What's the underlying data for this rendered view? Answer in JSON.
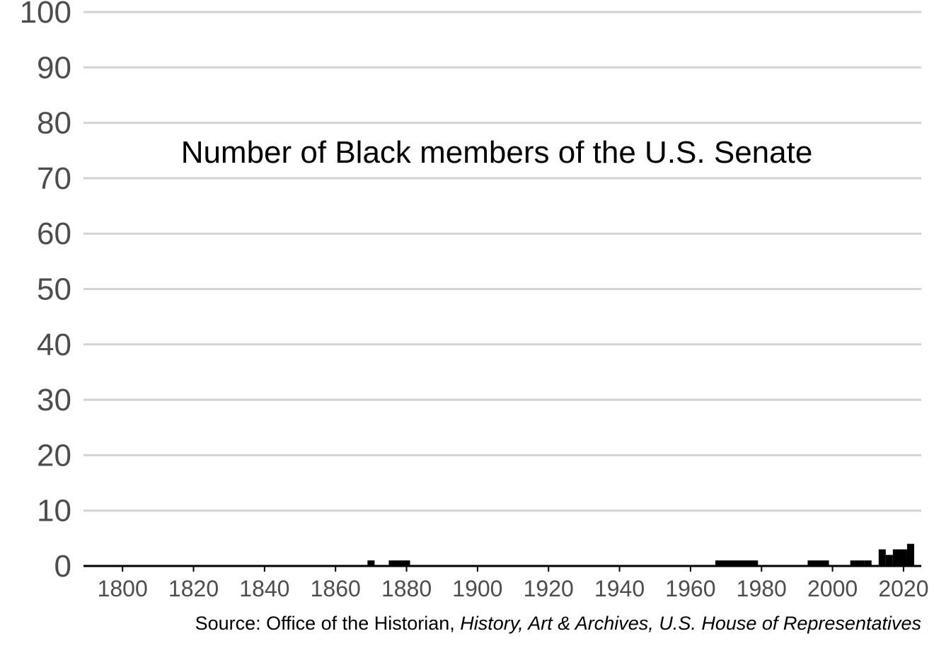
{
  "chart_data": {
    "type": "bar",
    "title": "Number of Black members of the U.S. Senate",
    "xlabel": "",
    "ylabel": "",
    "xlim": [
      1789,
      2025
    ],
    "ylim": [
      0,
      100
    ],
    "x_ticks": [
      1800,
      1820,
      1840,
      1860,
      1880,
      1900,
      1920,
      1940,
      1960,
      1980,
      2000,
      2020
    ],
    "y_ticks": [
      0,
      10,
      20,
      30,
      40,
      50,
      60,
      70,
      80,
      90,
      100
    ],
    "grid": "horizontal",
    "bar_color": "#000000",
    "grid_color": "#d3d3d3",
    "tick_label_color": "#4d4d4d",
    "bars": [
      {
        "start": 1869,
        "end": 1871,
        "value": 1
      },
      {
        "start": 1875,
        "end": 1881,
        "value": 1
      },
      {
        "start": 1967,
        "end": 1979,
        "value": 1
      },
      {
        "start": 1993,
        "end": 1999,
        "value": 1
      },
      {
        "start": 2005,
        "end": 2009,
        "value": 1
      },
      {
        "start": 2009,
        "end": 2011,
        "value": 1
      },
      {
        "start": 2013,
        "end": 2015,
        "value": 3
      },
      {
        "start": 2015,
        "end": 2017,
        "value": 2
      },
      {
        "start": 2017,
        "end": 2021,
        "value": 3
      },
      {
        "start": 2021,
        "end": 2023,
        "value": 4
      }
    ]
  },
  "source": {
    "prefix": "Source: Office of the Historian, ",
    "italic": "History, Art & Archives, U.S. House of Representatives"
  }
}
